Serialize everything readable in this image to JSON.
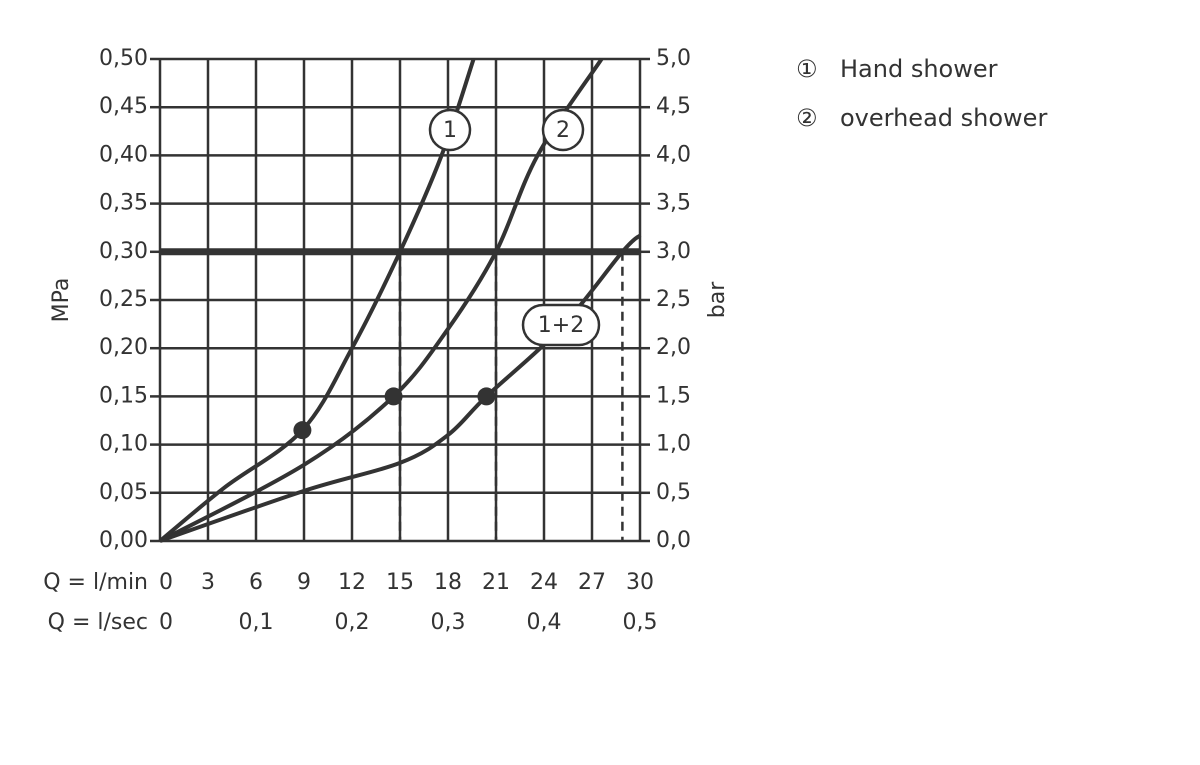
{
  "chart_data": {
    "type": "line",
    "ylabel": "MPa",
    "y2label": "bar",
    "xlabel": "Q = l/min",
    "x2label": "Q = l/sec",
    "xlim": [
      0,
      30
    ],
    "xticks": [
      0,
      3,
      6,
      9,
      12,
      15,
      18,
      21,
      24,
      27,
      30
    ],
    "x2lim": [
      0,
      0.5
    ],
    "x2ticks": [
      0,
      {
        "value": 0.1,
        "label": "0,1"
      },
      {
        "value": 0.2,
        "label": "0,2"
      },
      {
        "value": 0.3,
        "label": "0,3"
      },
      {
        "value": 0.4,
        "label": "0,4"
      },
      {
        "value": 0.5,
        "label": "0,5"
      }
    ],
    "ylim": [
      0,
      0.5
    ],
    "yticks": [
      {
        "value": 0,
        "label": "0,00"
      },
      {
        "value": 0.05,
        "label": "0,05"
      },
      {
        "value": 0.1,
        "label": "0,10"
      },
      {
        "value": 0.15,
        "label": "0,15"
      },
      {
        "value": 0.2,
        "label": "0,20"
      },
      {
        "value": 0.25,
        "label": "0,25"
      },
      {
        "value": 0.3,
        "label": "0,30"
      },
      {
        "value": 0.35,
        "label": "0,35"
      },
      {
        "value": 0.4,
        "label": "0,40"
      },
      {
        "value": 0.45,
        "label": "0,45"
      },
      {
        "value": 0.5,
        "label": "0,50"
      }
    ],
    "y2lim": [
      0,
      5
    ],
    "y2ticks": [
      {
        "value": 0,
        "label": "0,0"
      },
      {
        "value": 0.5,
        "label": "0,5"
      },
      {
        "value": 1,
        "label": "1,0"
      },
      {
        "value": 1.5,
        "label": "1,5"
      },
      {
        "value": 2,
        "label": "2,0"
      },
      {
        "value": 2.5,
        "label": "2,5"
      },
      {
        "value": 3,
        "label": "3,0"
      },
      {
        "value": 3.5,
        "label": "3,5"
      },
      {
        "value": 4,
        "label": "4,0"
      },
      {
        "value": 4.5,
        "label": "4,5"
      },
      {
        "value": 5,
        "label": "5,0"
      }
    ],
    "grid": true,
    "color": "#333333",
    "series": [
      {
        "label": "1",
        "x": [
          0,
          4,
          8.9,
          12,
          15,
          17.6,
          19.6
        ],
        "values": [
          0,
          0.055,
          0.115,
          0.2,
          0.3,
          0.4,
          0.5
        ]
      },
      {
        "label": "2",
        "x": [
          0,
          9,
          14.6,
          18,
          21,
          23.6,
          27.6
        ],
        "values": [
          0,
          0.079,
          0.15,
          0.22,
          0.3,
          0.4,
          0.5
        ]
      },
      {
        "label": "1+2",
        "x": [
          0,
          9,
          15,
          18,
          20.4,
          25,
          28.9,
          30
        ],
        "values": [
          0,
          0.052,
          0.081,
          0.11,
          0.15,
          0.22,
          0.3,
          0.317
        ]
      }
    ],
    "points": {
      "x": [
        8.9,
        14.6,
        20.4
      ],
      "values": [
        0.115,
        0.15,
        0.15
      ]
    },
    "reference_y": 0.3,
    "drop_x": [
      15,
      21,
      28.9
    ],
    "legend": [
      {
        "symbol": "①",
        "text": "Hand shower"
      },
      {
        "symbol": "②",
        "text": "overhead shower"
      }
    ]
  }
}
